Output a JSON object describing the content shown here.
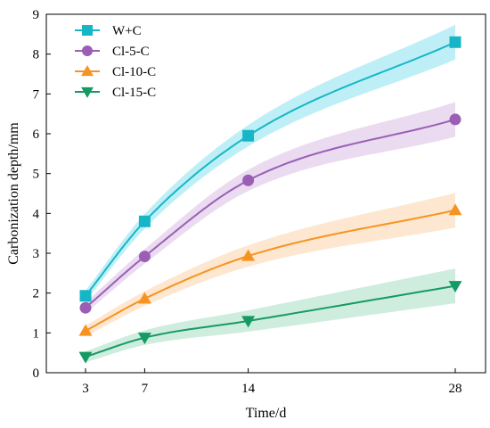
{
  "chart_data": {
    "type": "line",
    "xlabel": "Time/d",
    "ylabel": "Carbonization depth/mm",
    "x": [
      3,
      7,
      14,
      28
    ],
    "xticks": [
      3,
      7,
      14,
      28
    ],
    "xlim": [
      0,
      30
    ],
    "ylim": [
      0,
      9
    ],
    "yticks": [
      0,
      1,
      2,
      3,
      4,
      5,
      6,
      7,
      8,
      9
    ],
    "grid": false,
    "legend": "top-left",
    "series": [
      {
        "name": "W+C",
        "marker": "square",
        "color": "#17b6c7",
        "band": "#b4ecf4",
        "values": [
          1.93,
          3.8,
          5.95,
          8.3
        ]
      },
      {
        "name": "Cl-5-C",
        "marker": "circle",
        "color": "#9a5fb5",
        "band": "#e6d5ee",
        "values": [
          1.63,
          2.92,
          4.83,
          6.36
        ]
      },
      {
        "name": "Cl-10-C",
        "marker": "triangle-up",
        "color": "#f79320",
        "band": "#fde3c8",
        "values": [
          1.05,
          1.86,
          2.93,
          4.08
        ]
      },
      {
        "name": "Cl-15-C",
        "marker": "triangle-down",
        "color": "#159a63",
        "band": "#c7ead8",
        "values": [
          0.4,
          0.88,
          1.3,
          2.18
        ]
      }
    ]
  }
}
